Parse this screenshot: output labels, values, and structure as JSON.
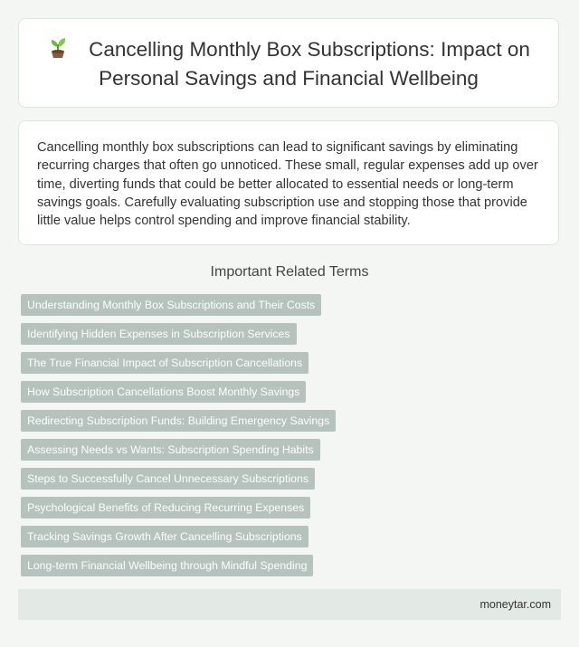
{
  "header": {
    "icon": "sprout-icon",
    "title": "Cancelling Monthly Box Subscriptions: Impact on Personal Savings and Financial Wellbeing"
  },
  "summary": {
    "text": "Cancelling monthly box subscriptions can lead to significant savings by eliminating recurring charges that often go unnoticed. These small, regular expenses add up over time, diverting funds that could be better allocated to essential needs or long-term savings goals. Carefully evaluating subscription use and stopping those that provide little value helps control spending and improve financial stability."
  },
  "related": {
    "heading": "Important Related Terms",
    "terms": [
      "Understanding Monthly Box Subscriptions and Their Costs",
      "Identifying Hidden Expenses in Subscription Services",
      "The True Financial Impact of Subscription Cancellations",
      "How Subscription Cancellations Boost Monthly Savings",
      "Redirecting Subscription Funds: Building Emergency Savings",
      "Assessing Needs vs Wants: Subscription Spending Habits",
      "Steps to Successfully Cancel Unnecessary Subscriptions",
      "Psychological Benefits of Reducing Recurring Expenses",
      "Tracking Savings Growth After Cancelling Subscriptions",
      "Long-term Financial Wellbeing through Mindful Spending"
    ]
  },
  "footer": {
    "site": "moneytar.com"
  },
  "colors": {
    "background": "#f3f6f3",
    "tag_background": "#b5c2bd",
    "footer_background": "#e3e9e5"
  }
}
